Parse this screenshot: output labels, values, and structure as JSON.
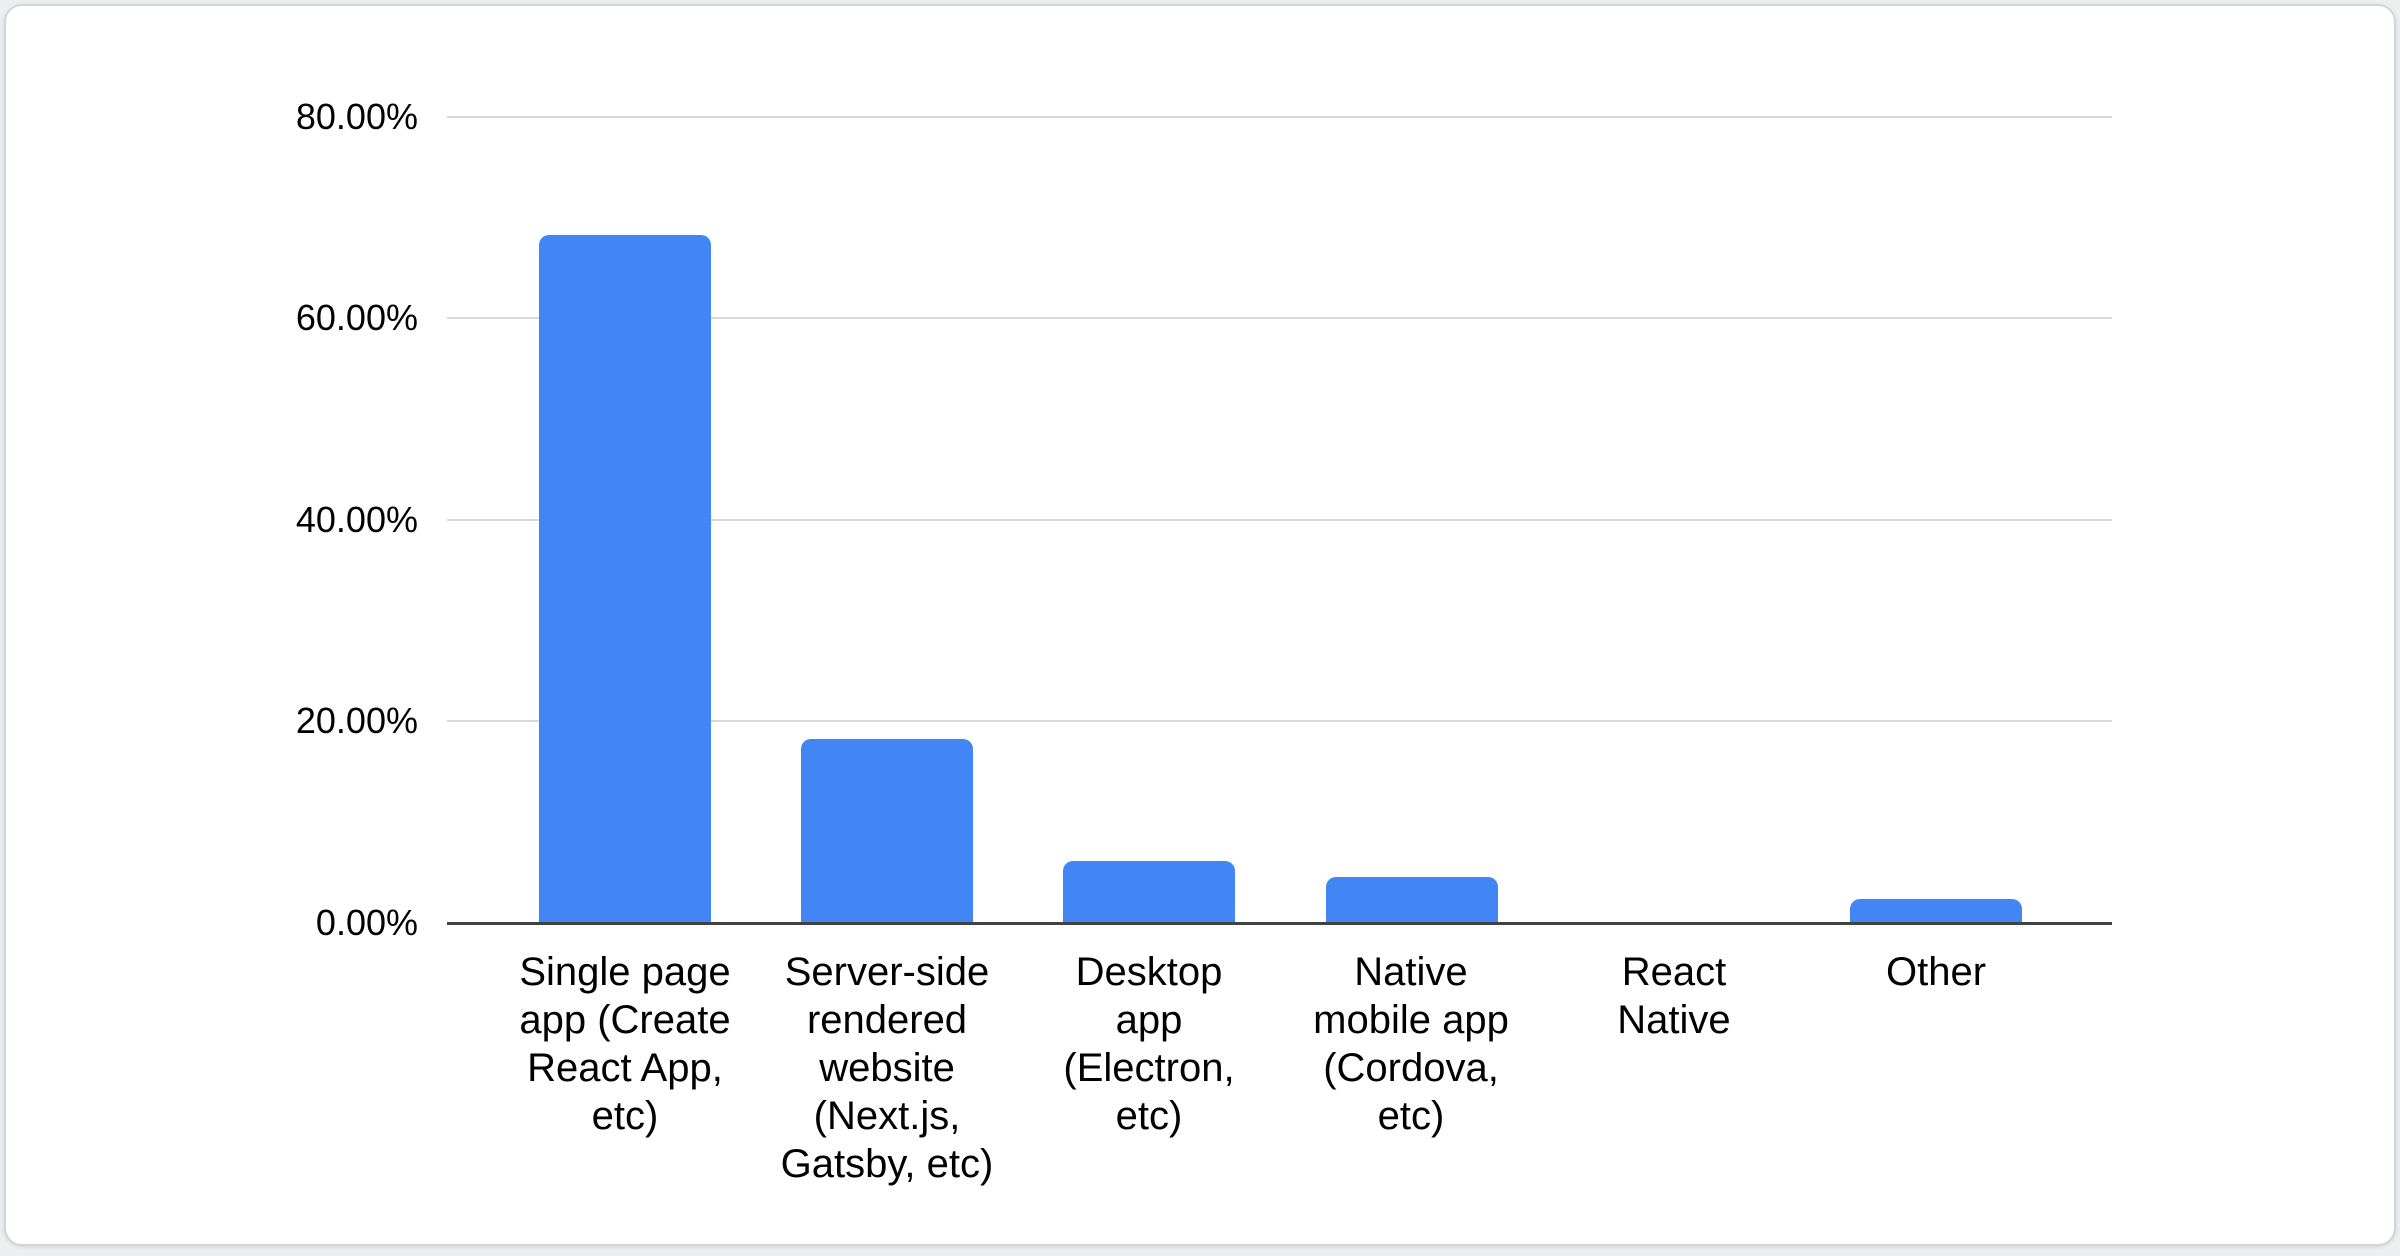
{
  "colors": {
    "bar": "#4285f4",
    "gridline": "#d9d9d9",
    "axis_line": "#424242",
    "label_text": "#000000",
    "card_background": "#ffffff",
    "card_border": "#d2d5d9"
  },
  "chart_data": {
    "type": "bar",
    "categories": [
      "Single page app (Create React App, etc)",
      "Server-side rendered website (Next.js, Gatsby, etc)",
      "Desktop app (Electron, etc)",
      "Native mobile app (Cordova, etc)",
      "React Native",
      "Other"
    ],
    "category_label_lines": [
      [
        "Single page",
        "app (Create",
        "React App,",
        "etc)"
      ],
      [
        "Server-side",
        "rendered",
        "website",
        "(Next.js,",
        "Gatsby, etc)"
      ],
      [
        "Desktop",
        "app",
        "(Electron,",
        "etc)"
      ],
      [
        "Native",
        "mobile app",
        "(Cordova,",
        "etc)"
      ],
      [
        "React",
        "Native"
      ],
      [
        "Other"
      ]
    ],
    "values": [
      68.3,
      18.3,
      6.2,
      4.6,
      0,
      2.4
    ],
    "value_unit": "%",
    "yticks": [
      "80.00%",
      "60.00%",
      "40.00%",
      "20.00%",
      "0.00%"
    ],
    "ytick_values": [
      80,
      60,
      40,
      20,
      0
    ],
    "ylim": [
      0,
      80
    ],
    "grid": true,
    "legend": "none",
    "bar_color": "#4285f4"
  }
}
